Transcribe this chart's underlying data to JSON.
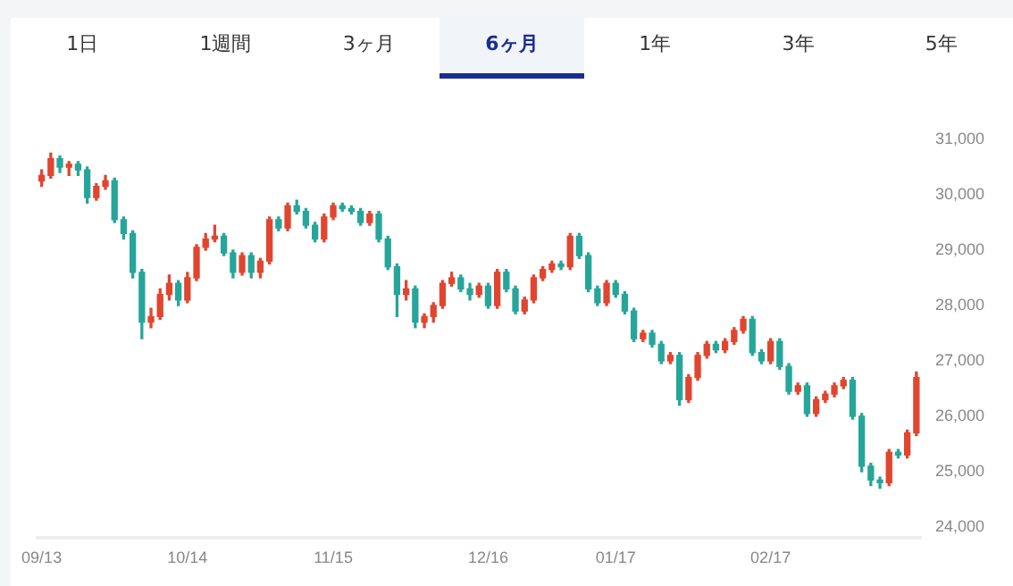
{
  "chart_data": {
    "type": "candlestick",
    "annotations": [
      "1日",
      "1週間",
      "3ヶ月",
      "6ヶ月",
      "1年",
      "3年",
      "5年"
    ],
    "categories": [
      "09/13",
      null,
      null,
      null,
      null,
      null,
      null,
      null,
      null,
      null,
      null,
      null,
      null,
      null,
      null,
      null,
      "10/14",
      null,
      null,
      null,
      null,
      null,
      null,
      null,
      null,
      null,
      null,
      null,
      null,
      null,
      null,
      null,
      "11/15",
      null,
      null,
      null,
      null,
      null,
      null,
      null,
      null,
      null,
      null,
      null,
      null,
      null,
      null,
      null,
      null,
      "12/16",
      null,
      null,
      null,
      null,
      null,
      null,
      null,
      null,
      null,
      null,
      null,
      null,
      null,
      "01/17",
      null,
      null,
      null,
      null,
      null,
      null,
      null,
      null,
      null,
      null,
      null,
      null,
      null,
      null,
      null,
      null,
      "02/17",
      null,
      null,
      null,
      null,
      null,
      null,
      null,
      null,
      null,
      null,
      null,
      null,
      null,
      null,
      null,
      null
    ],
    "ohlc": [
      [
        30250,
        30450,
        30150,
        30350
      ],
      [
        30350,
        30750,
        30300,
        30650
      ],
      [
        30650,
        30700,
        30400,
        30500
      ],
      [
        30500,
        30600,
        30350,
        30550
      ],
      [
        30550,
        30600,
        30350,
        30450
      ],
      [
        30450,
        30500,
        29850,
        29950
      ],
      [
        29950,
        30200,
        29900,
        30150
      ],
      [
        30150,
        30350,
        30100,
        30250
      ],
      [
        30250,
        30300,
        29500,
        29550
      ],
      [
        29550,
        29600,
        29200,
        29300
      ],
      [
        29300,
        29350,
        28500,
        28600
      ],
      [
        28600,
        28650,
        27400,
        27700
      ],
      [
        27700,
        27950,
        27600,
        27800
      ],
      [
        27800,
        28300,
        27750,
        28200
      ],
      [
        28200,
        28550,
        28100,
        28400
      ],
      [
        28400,
        28450,
        28000,
        28100
      ],
      [
        28100,
        28600,
        28050,
        28500
      ],
      [
        28500,
        29100,
        28450,
        29050
      ],
      [
        29050,
        29300,
        29000,
        29200
      ],
      [
        29200,
        29450,
        29150,
        29250
      ],
      [
        29250,
        29300,
        28900,
        28950
      ],
      [
        28950,
        29000,
        28500,
        28600
      ],
      [
        28600,
        28950,
        28550,
        28900
      ],
      [
        28900,
        28950,
        28500,
        28600
      ],
      [
        28600,
        28850,
        28500,
        28800
      ],
      [
        28800,
        29600,
        28750,
        29550
      ],
      [
        29550,
        29600,
        29350,
        29400
      ],
      [
        29400,
        29850,
        29350,
        29800
      ],
      [
        29800,
        29900,
        29650,
        29700
      ],
      [
        29700,
        29750,
        29400,
        29450
      ],
      [
        29450,
        29500,
        29150,
        29200
      ],
      [
        29200,
        29650,
        29150,
        29600
      ],
      [
        29600,
        29850,
        29550,
        29800
      ],
      [
        29800,
        29850,
        29700,
        29750
      ],
      [
        29750,
        29800,
        29650,
        29700
      ],
      [
        29700,
        29750,
        29450,
        29500
      ],
      [
        29500,
        29700,
        29450,
        29650
      ],
      [
        29650,
        29700,
        29150,
        29200
      ],
      [
        29200,
        29250,
        28650,
        28700
      ],
      [
        28700,
        28750,
        27800,
        28200
      ],
      [
        28200,
        28450,
        28100,
        28300
      ],
      [
        28300,
        28350,
        27600,
        27700
      ],
      [
        27700,
        27850,
        27600,
        27800
      ],
      [
        27800,
        28050,
        27700,
        28000
      ],
      [
        28000,
        28450,
        27950,
        28400
      ],
      [
        28400,
        28600,
        28350,
        28500
      ],
      [
        28500,
        28550,
        28250,
        28300
      ],
      [
        28300,
        28400,
        28100,
        28200
      ],
      [
        28200,
        28400,
        28150,
        28350
      ],
      [
        28350,
        28400,
        27950,
        28000
      ],
      [
        28000,
        28650,
        27950,
        28600
      ],
      [
        28600,
        28650,
        28250,
        28300
      ],
      [
        28300,
        28350,
        27850,
        27900
      ],
      [
        27900,
        28150,
        27850,
        28100
      ],
      [
        28100,
        28550,
        28050,
        28500
      ],
      [
        28500,
        28700,
        28450,
        28650
      ],
      [
        28650,
        28800,
        28600,
        28750
      ],
      [
        28750,
        28800,
        28650,
        28700
      ],
      [
        28700,
        29300,
        28650,
        29250
      ],
      [
        29250,
        29300,
        28850,
        28900
      ],
      [
        28900,
        28950,
        28250,
        28300
      ],
      [
        28300,
        28350,
        28000,
        28050
      ],
      [
        28050,
        28450,
        28000,
        28400
      ],
      [
        28400,
        28450,
        28150,
        28200
      ],
      [
        28200,
        28250,
        27850,
        27900
      ],
      [
        27900,
        27950,
        27350,
        27400
      ],
      [
        27400,
        27550,
        27350,
        27500
      ],
      [
        27500,
        27550,
        27250,
        27300
      ],
      [
        27300,
        27350,
        26950,
        27000
      ],
      [
        27000,
        27150,
        26950,
        27100
      ],
      [
        27100,
        27150,
        26200,
        26300
      ],
      [
        26300,
        26750,
        26250,
        26700
      ],
      [
        26700,
        27150,
        26650,
        27100
      ],
      [
        27100,
        27350,
        27050,
        27300
      ],
      [
        27300,
        27350,
        27150,
        27200
      ],
      [
        27200,
        27400,
        27150,
        27350
      ],
      [
        27350,
        27600,
        27300,
        27550
      ],
      [
        27550,
        27800,
        27500,
        27750
      ],
      [
        27750,
        27800,
        27100,
        27150
      ],
      [
        27150,
        27200,
        26950,
        27000
      ],
      [
        27000,
        27400,
        26950,
        27350
      ],
      [
        27350,
        27400,
        26850,
        26900
      ],
      [
        26900,
        26950,
        26400,
        26450
      ],
      [
        26450,
        26600,
        26400,
        26550
      ],
      [
        26550,
        26600,
        26000,
        26050
      ],
      [
        26050,
        26350,
        26000,
        26300
      ],
      [
        26300,
        26450,
        26250,
        26400
      ],
      [
        26400,
        26600,
        26350,
        26550
      ],
      [
        26550,
        26700,
        26500,
        26650
      ],
      [
        26650,
        26700,
        25950,
        26000
      ],
      [
        26000,
        26050,
        25000,
        25100
      ],
      [
        25100,
        25150,
        24750,
        24850
      ],
      [
        24850,
        24900,
        24700,
        24800
      ],
      [
        24800,
        25400,
        24750,
        25350
      ],
      [
        25350,
        25400,
        25250,
        25300
      ],
      [
        25300,
        25750,
        25250,
        25700
      ],
      [
        25700,
        26800,
        25650,
        26700
      ]
    ],
    "colors": [
      "#e0462f",
      "#e0462f",
      "#26a69a",
      "#e0462f",
      "#26a69a",
      "#26a69a",
      "#e0462f",
      "#e0462f",
      "#26a69a",
      "#26a69a",
      "#26a69a",
      "#26a69a",
      "#e0462f",
      "#e0462f",
      "#e0462f",
      "#26a69a",
      "#e0462f",
      "#e0462f",
      "#e0462f",
      "#e0462f",
      "#26a69a",
      "#26a69a",
      "#e0462f",
      "#26a69a",
      "#e0462f",
      "#e0462f",
      "#26a69a",
      "#e0462f",
      "#26a69a",
      "#26a69a",
      "#26a69a",
      "#e0462f",
      "#e0462f",
      "#26a69a",
      "#26a69a",
      "#26a69a",
      "#e0462f",
      "#26a69a",
      "#26a69a",
      "#26a69a",
      "#e0462f",
      "#26a69a",
      "#e0462f",
      "#e0462f",
      "#e0462f",
      "#e0462f",
      "#26a69a",
      "#26a69a",
      "#e0462f",
      "#26a69a",
      "#e0462f",
      "#26a69a",
      "#26a69a",
      "#e0462f",
      "#e0462f",
      "#e0462f",
      "#e0462f",
      "#26a69a",
      "#e0462f",
      "#26a69a",
      "#26a69a",
      "#26a69a",
      "#e0462f",
      "#26a69a",
      "#26a69a",
      "#26a69a",
      "#e0462f",
      "#26a69a",
      "#26a69a",
      "#e0462f",
      "#26a69a",
      "#e0462f",
      "#e0462f",
      "#e0462f",
      "#26a69a",
      "#e0462f",
      "#e0462f",
      "#e0462f",
      "#26a69a",
      "#26a69a",
      "#e0462f",
      "#26a69a",
      "#26a69a",
      "#e0462f",
      "#26a69a",
      "#e0462f",
      "#e0462f",
      "#e0462f",
      "#e0462f",
      "#26a69a",
      "#26a69a",
      "#26a69a",
      "#26a69a",
      "#e0462f",
      "#26a69a",
      "#e0462f",
      "#e0462f"
    ],
    "ylim": [
      23800,
      31000
    ],
    "yticks": [
      {
        "value": 24000,
        "label": "24,000"
      },
      {
        "value": 25000,
        "label": "25,000"
      },
      {
        "value": 26000,
        "label": "26,000"
      },
      {
        "value": 27000,
        "label": "27,000"
      },
      {
        "value": 28000,
        "label": "28,000"
      },
      {
        "value": 29000,
        "label": "29,000"
      },
      {
        "value": 30000,
        "label": "30,000"
      },
      {
        "value": 31000,
        "label": "31,000"
      }
    ],
    "grid": false,
    "legend": false
  }
}
